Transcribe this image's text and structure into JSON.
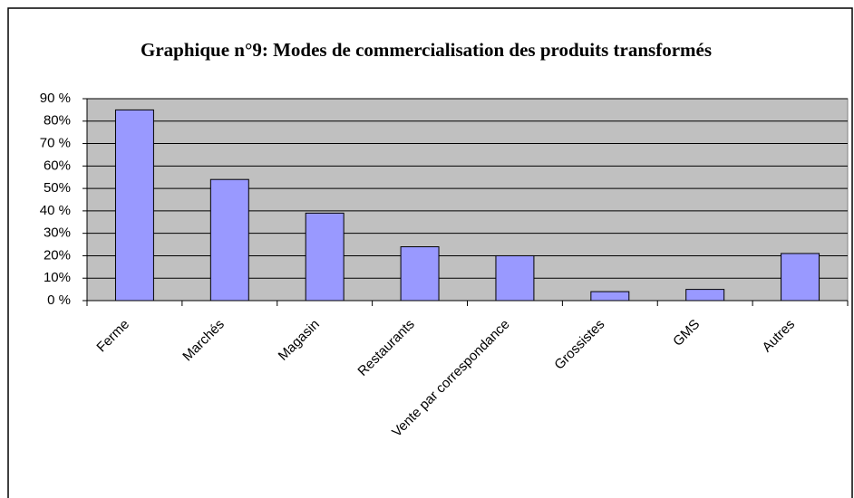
{
  "chart_data": {
    "type": "bar",
    "title": "Graphique n°9: Modes de commercialisation des produits transformés",
    "categories": [
      "Ferme",
      "Marchés",
      "Magasin",
      "Restaurants",
      "Vente par correspondance",
      "Grossistes",
      "GMS",
      "Autres"
    ],
    "values": [
      85,
      54,
      39,
      24,
      20,
      4,
      5,
      21
    ],
    "color": "#9999ff",
    "ylim": [
      0,
      90
    ],
    "yticks": [
      {
        "value": 0,
        "label": "0 %"
      },
      {
        "value": 10,
        "label": "10%"
      },
      {
        "value": 20,
        "label": "20%"
      },
      {
        "value": 30,
        "label": "30%"
      },
      {
        "value": 40,
        "label": "40 %"
      },
      {
        "value": 50,
        "label": "50%"
      },
      {
        "value": 60,
        "label": "60%"
      },
      {
        "value": 70,
        "label": "70 %"
      },
      {
        "value": 80,
        "label": "80%"
      },
      {
        "value": 90,
        "label": "90 %"
      }
    ],
    "grid": true
  }
}
